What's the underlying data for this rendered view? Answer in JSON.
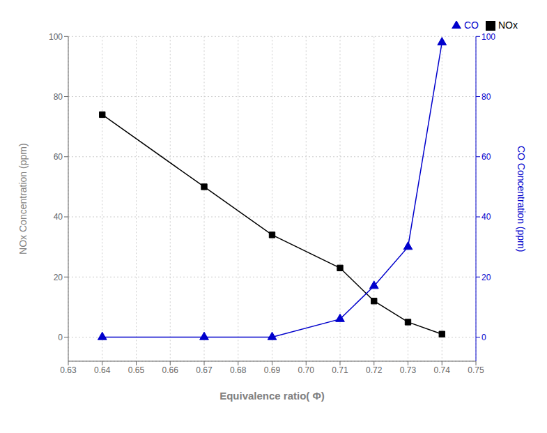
{
  "chart_data": {
    "type": "line",
    "xlabel": "Equivalence ratio( Φ)",
    "ylabel": "NOx Concentration (ppm)",
    "y2label": "CO Concentration (ppm)",
    "x": [
      0.64,
      0.67,
      0.69,
      0.71,
      0.72,
      0.73,
      0.74
    ],
    "series": [
      {
        "name": "NOx",
        "color": "#000000",
        "marker": "square",
        "values": [
          74,
          50,
          34,
          23,
          12,
          5,
          1
        ]
      },
      {
        "name": "CO",
        "color": "#0000cc",
        "marker": "triangle",
        "axis": "y2",
        "values": [
          0,
          0,
          0,
          6,
          17,
          30,
          98
        ]
      }
    ],
    "xlim": [
      0.63,
      0.75
    ],
    "xticks": [
      0.63,
      0.64,
      0.65,
      0.66,
      0.67,
      0.68,
      0.69,
      {
        "value": 0.7,
        "label": "0.70"
      },
      0.71,
      0.72,
      0.73,
      0.74,
      0.75
    ],
    "ylim": [
      -8,
      100
    ],
    "yticks": [
      0,
      20,
      40,
      60,
      80,
      100
    ],
    "y2lim": [
      -8,
      100
    ],
    "y2ticks": [
      0,
      20,
      40,
      60,
      80,
      100
    ],
    "grid": true,
    "legend": "upper right"
  }
}
